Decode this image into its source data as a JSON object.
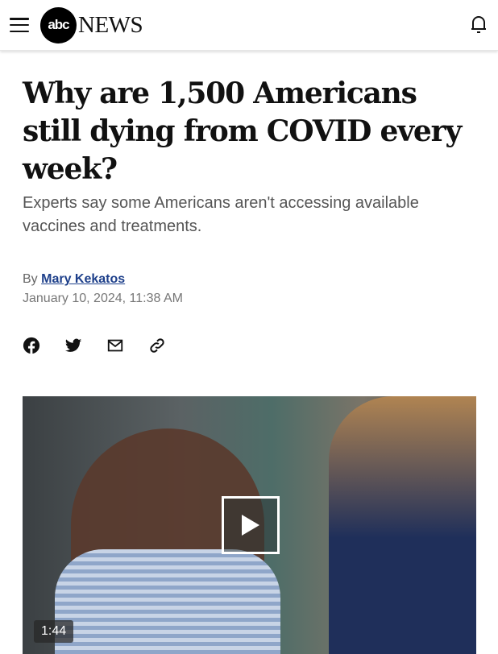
{
  "header": {
    "logo_abc": "abc",
    "logo_news": "NEWS",
    "icons": [
      "menu-icon",
      "bell-icon"
    ]
  },
  "article": {
    "title": "Why are 1,500 Americans still dying from COVID every week?",
    "subtitle": "Experts say some Americans aren't accessing available vaccines and treatments.",
    "by_prefix": "By",
    "author": "Mary Kekatos",
    "date": "January 10, 2024, 11:38 AM",
    "share_icons": [
      "facebook-icon",
      "twitter-icon",
      "email-icon",
      "link-icon"
    ],
    "author_color": "#1d3f8a"
  },
  "video": {
    "duration": "1:44"
  }
}
